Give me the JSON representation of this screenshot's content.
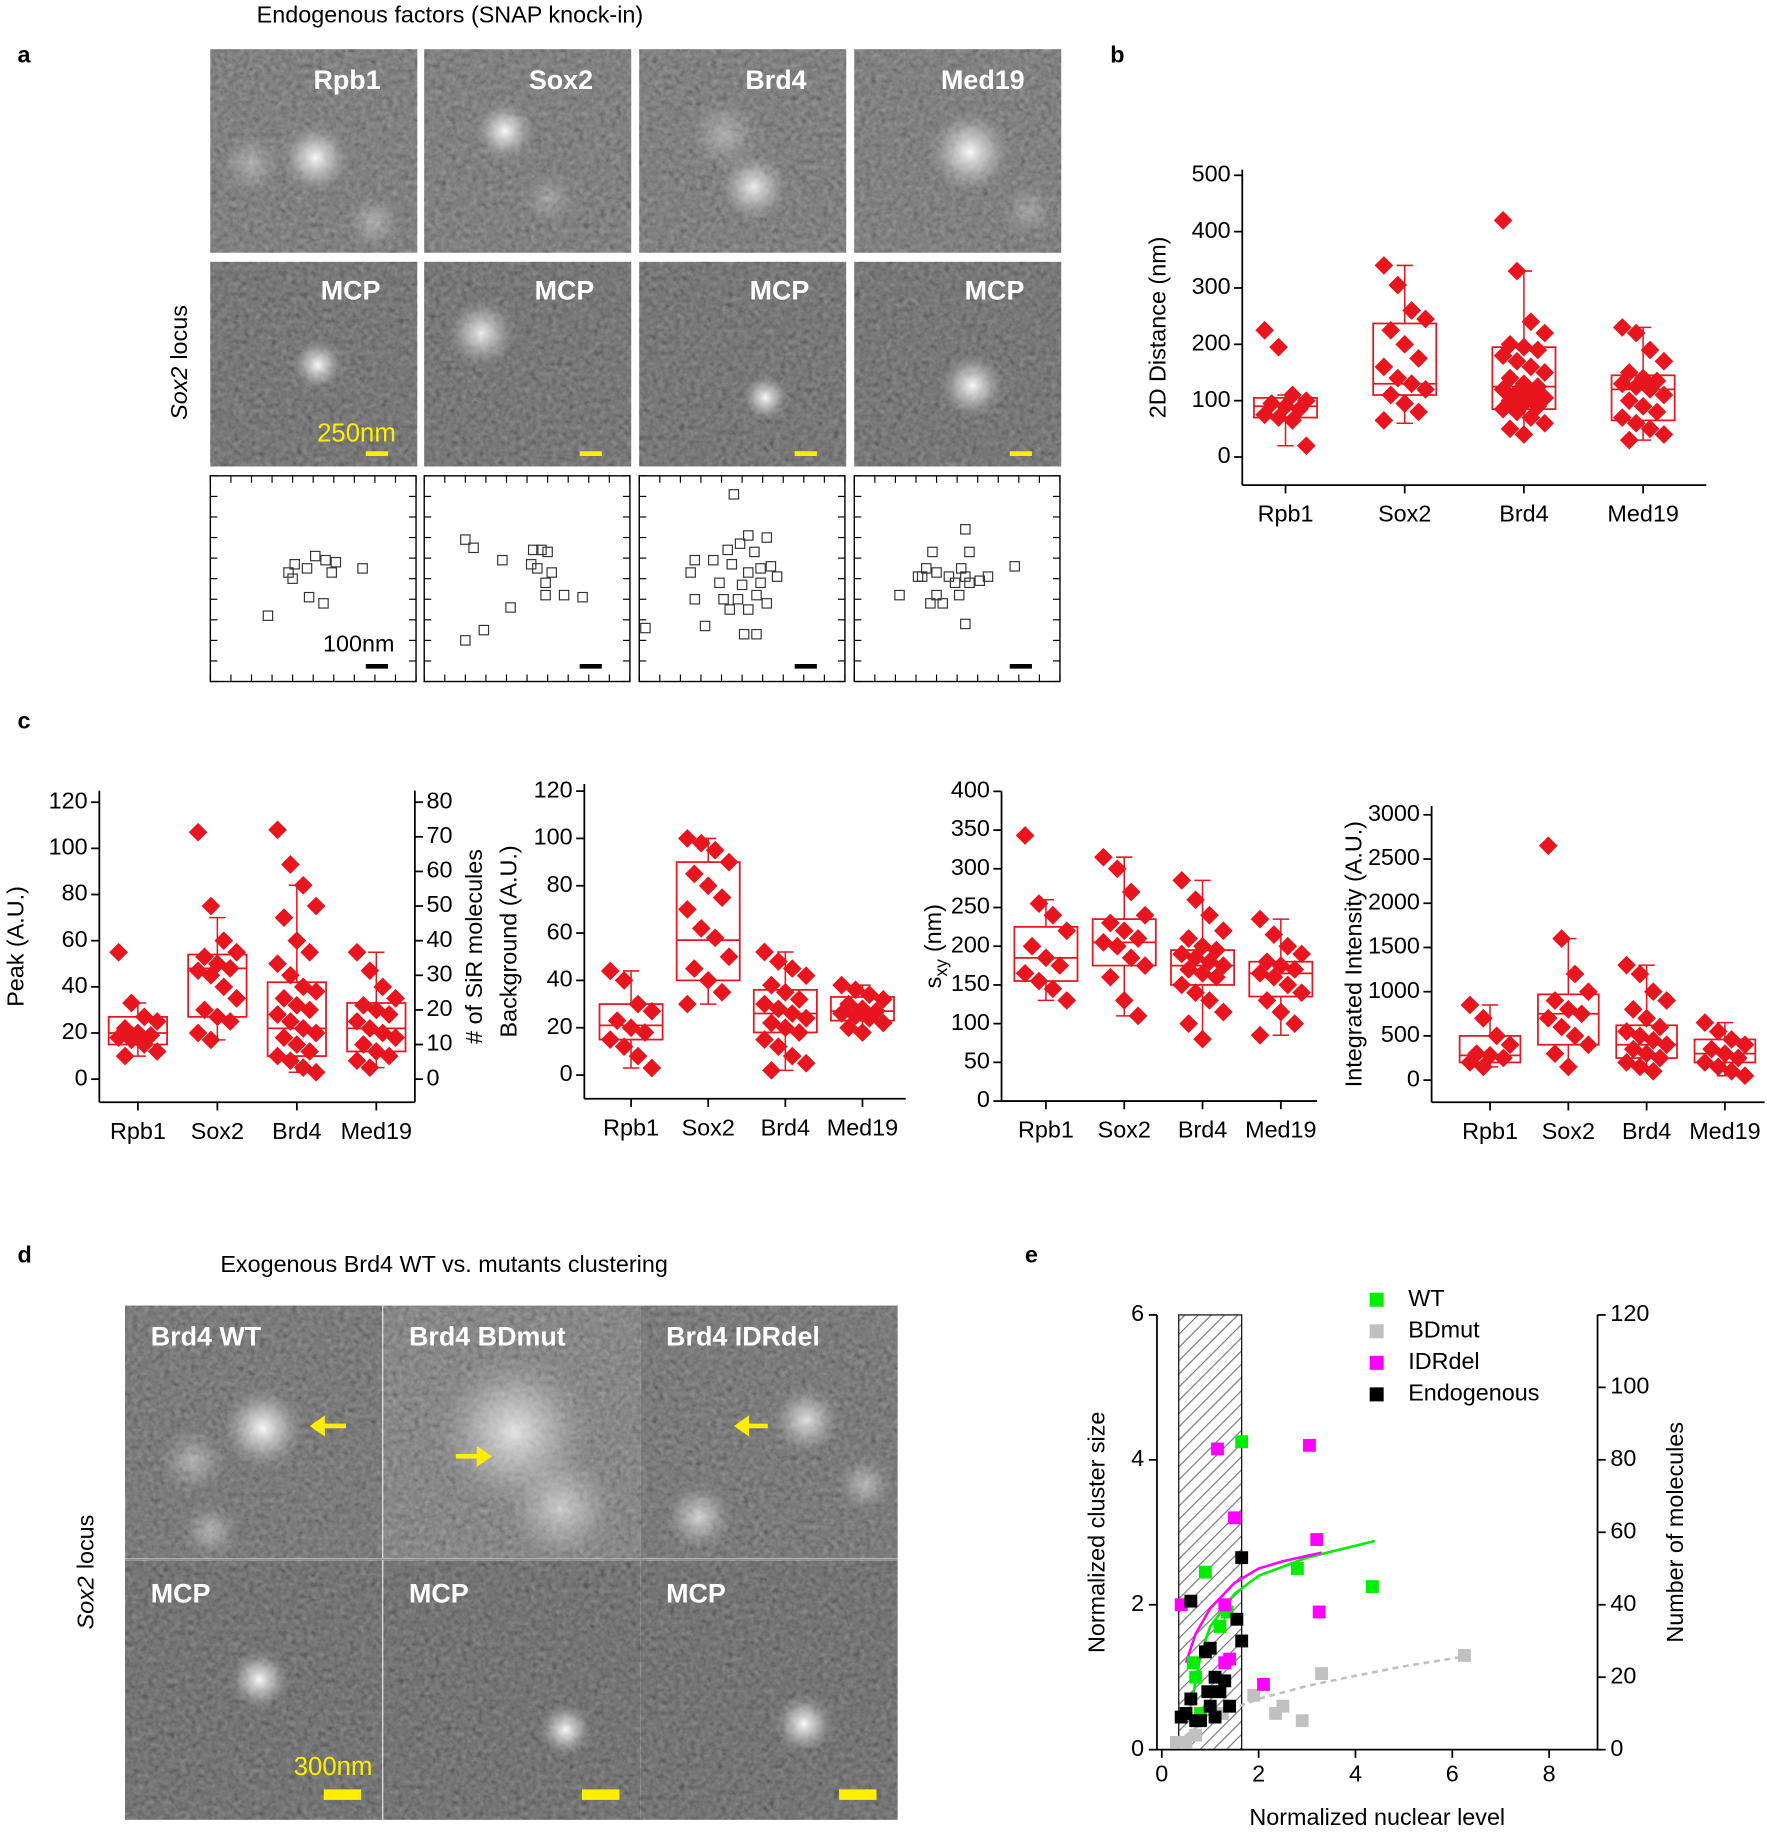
{
  "figure": {
    "title": "Endogenous factors (SNAP knock-in)",
    "panel_labels": [
      "a",
      "b",
      "c",
      "d",
      "e"
    ],
    "panel_a": {
      "factors": [
        "Rpb1",
        "Sox2",
        "Brd4",
        "Med19"
      ],
      "mcp_label": "MCP",
      "row_label": {
        "gene": "Sox2",
        "rest": "locus"
      },
      "scale_bar_image": "250nm",
      "scale_bar_localization": "100nm"
    },
    "panel_d": {
      "title": "Exogenous Brd4 WT vs. mutants clustering",
      "variants": [
        "Brd4 WT",
        "Brd4 BDmut",
        "Brd4 IDRdel"
      ],
      "mcp_label": "MCP",
      "row_label": {
        "gene": "Sox2",
        "rest": "locus"
      },
      "scale_bar": "300nm"
    }
  },
  "chart_data": [
    {
      "type": "localization",
      "xlim": [
        0,
        10
      ],
      "ylim": [
        0,
        10
      ],
      "xticks": [
        0,
        1,
        2,
        3,
        4,
        5,
        6,
        7,
        8,
        9,
        10
      ],
      "yticks": [
        0,
        1,
        2,
        3,
        4,
        5,
        6,
        7,
        8,
        9,
        10
      ],
      "x": [
        5.1,
        5.6,
        6.1,
        4.1,
        3.8,
        4.7,
        5.9,
        7.4,
        4.0,
        4.8,
        5.5,
        2.8
      ],
      "y": [
        6.1,
        5.9,
        5.8,
        5.7,
        5.3,
        5.5,
        5.3,
        5.5,
        5.0,
        4.1,
        3.8,
        3.2
      ]
    },
    {
      "type": "localization",
      "xlim": [
        0,
        10
      ],
      "ylim": [
        0,
        10
      ],
      "xticks": [
        0,
        1,
        2,
        3,
        4,
        5,
        6,
        7,
        8,
        9,
        10
      ],
      "yticks": [
        0,
        1,
        2,
        3,
        4,
        5,
        6,
        7,
        8,
        9,
        10
      ],
      "x": [
        2.0,
        2.4,
        3.8,
        5.3,
        5.7,
        6.0,
        5.2,
        5.5,
        6.2,
        5.9,
        5.9,
        6.8,
        7.7,
        4.2,
        2.9,
        2.0
      ],
      "y": [
        6.9,
        6.5,
        5.9,
        6.4,
        6.4,
        6.3,
        5.7,
        5.5,
        5.3,
        4.8,
        4.2,
        4.2,
        4.1,
        3.6,
        2.5,
        2.0
      ]
    },
    {
      "type": "localization",
      "xlim": [
        0,
        10
      ],
      "ylim": [
        0,
        10
      ],
      "xticks": [
        0,
        1,
        2,
        3,
        4,
        5,
        6,
        7,
        8,
        9,
        10
      ],
      "yticks": [
        0,
        1,
        2,
        3,
        4,
        5,
        6,
        7,
        8,
        9,
        10
      ],
      "x": [
        4.6,
        5.3,
        4.9,
        6.2,
        4.3,
        5.6,
        3.6,
        2.7,
        4.5,
        6.4,
        5.9,
        5.3,
        6.7,
        2.5,
        3.9,
        5.0,
        5.9,
        4.1,
        2.7,
        4.8,
        5.7,
        6.2,
        3.2,
        5.1,
        5.7,
        0.3,
        4.4,
        5.3
      ],
      "y": [
        9.1,
        7.1,
        6.7,
        7.0,
        6.4,
        6.3,
        5.9,
        5.9,
        5.7,
        5.6,
        5.5,
        5.3,
        5.1,
        5.3,
        4.8,
        4.7,
        4.8,
        4.0,
        4.0,
        4.0,
        4.2,
        3.8,
        2.7,
        2.3,
        2.3,
        2.6,
        3.5,
        3.5
      ]
    },
    {
      "type": "localization",
      "xlim": [
        0,
        10
      ],
      "ylim": [
        0,
        10
      ],
      "xticks": [
        0,
        1,
        2,
        3,
        4,
        5,
        6,
        7,
        8,
        9,
        10
      ],
      "yticks": [
        0,
        1,
        2,
        3,
        4,
        5,
        6,
        7,
        8,
        9,
        10
      ],
      "x": [
        5.4,
        3.8,
        5.6,
        3.5,
        4.0,
        5.2,
        3.3,
        4.6,
        5.4,
        6.5,
        7.8,
        4.9,
        5.6,
        6.1,
        2.2,
        4.0,
        5.1,
        3.7,
        4.3,
        5.4,
        3.1
      ],
      "y": [
        7.4,
        6.3,
        6.3,
        5.5,
        5.3,
        5.5,
        5.1,
        5.1,
        5.1,
        5.1,
        5.6,
        4.8,
        4.8,
        4.9,
        4.2,
        4.2,
        4.2,
        3.8,
        3.8,
        2.8,
        5.1
      ]
    },
    {
      "type": "box",
      "ylabel": "2D Distance (nm)",
      "categories": [
        "Rpb1",
        "Sox2",
        "Brd4",
        "Med19"
      ],
      "color": "#e8141e",
      "ylim": [
        -50,
        510
      ],
      "yticks": [
        0,
        100,
        200,
        300,
        400,
        500
      ],
      "boxes": [
        {
          "whisker_low": 20,
          "q1": 70,
          "median": 90,
          "q3": 105,
          "whisker_high": 110,
          "points": [
            225,
            195,
            110,
            100,
            95,
            90,
            85,
            75,
            70,
            65,
            20
          ]
        },
        {
          "whisker_low": 60,
          "q1": 110,
          "median": 130,
          "q3": 237,
          "whisker_high": 340,
          "points": [
            340,
            305,
            260,
            245,
            225,
            200,
            175,
            160,
            140,
            130,
            120,
            110,
            95,
            80,
            65
          ]
        },
        {
          "whisker_low": 40,
          "q1": 85,
          "median": 125,
          "q3": 195,
          "whisker_high": 330,
          "points": [
            420,
            330,
            240,
            220,
            200,
            195,
            190,
            180,
            170,
            160,
            150,
            140,
            130,
            125,
            120,
            115,
            110,
            105,
            100,
            95,
            90,
            85,
            80,
            70,
            60,
            50,
            40
          ]
        },
        {
          "whisker_low": 30,
          "q1": 65,
          "median": 120,
          "q3": 145,
          "whisker_high": 230,
          "points": [
            230,
            220,
            190,
            170,
            150,
            140,
            135,
            130,
            125,
            120,
            110,
            100,
            90,
            80,
            70,
            60,
            50,
            40,
            30
          ]
        }
      ]
    },
    {
      "type": "box",
      "ylabel": "Peak (A.U.)",
      "y2label": "# of SiR molecules",
      "categories": [
        "Rpb1",
        "Sox2",
        "Brd4",
        "Med19"
      ],
      "color": "#e8141e",
      "ylim": [
        -10,
        125
      ],
      "yticks": [
        0,
        20,
        40,
        60,
        80,
        100,
        120
      ],
      "y2lim": [
        -6.667,
        83.333
      ],
      "y2ticks": [
        0,
        10,
        20,
        30,
        40,
        50,
        60,
        70,
        80
      ],
      "boxes": [
        {
          "whisker_low": 10,
          "q1": 15,
          "median": 20,
          "q3": 27,
          "whisker_high": 33,
          "points": [
            55,
            33,
            27,
            25,
            22,
            20,
            19,
            18,
            17,
            15,
            12,
            10
          ]
        },
        {
          "whisker_low": 17,
          "q1": 27,
          "median": 48,
          "q3": 54,
          "whisker_high": 70,
          "points": [
            107,
            75,
            60,
            55,
            53,
            50,
            48,
            47,
            45,
            40,
            35,
            30,
            27,
            25,
            20,
            17
          ]
        },
        {
          "whisker_low": 3,
          "q1": 10,
          "median": 22,
          "q3": 42,
          "whisker_high": 84,
          "points": [
            108,
            93,
            84,
            75,
            70,
            60,
            55,
            50,
            45,
            40,
            38,
            35,
            32,
            30,
            28,
            25,
            22,
            20,
            18,
            15,
            12,
            10,
            8,
            5,
            3
          ]
        },
        {
          "whisker_low": 5,
          "q1": 12,
          "median": 22,
          "q3": 33,
          "whisker_high": 55,
          "points": [
            55,
            47,
            40,
            35,
            32,
            30,
            28,
            25,
            22,
            20,
            18,
            15,
            12,
            10,
            8,
            5
          ]
        }
      ]
    },
    {
      "type": "box",
      "ylabel": "Background (A.U.)",
      "categories": [
        "Rpb1",
        "Sox2",
        "Brd4",
        "Med19"
      ],
      "color": "#e8141e",
      "ylim": [
        -10,
        123
      ],
      "yticks": [
        0,
        20,
        40,
        60,
        80,
        100,
        120
      ],
      "boxes": [
        {
          "whisker_low": 3,
          "q1": 15,
          "median": 21,
          "q3": 30,
          "whisker_high": 44,
          "points": [
            44,
            40,
            30,
            27,
            23,
            20,
            18,
            15,
            12,
            8,
            3
          ]
        },
        {
          "whisker_low": 30,
          "q1": 40,
          "median": 57,
          "q3": 90,
          "whisker_high": 100,
          "points": [
            100,
            98,
            95,
            90,
            85,
            80,
            75,
            70,
            62,
            58,
            50,
            45,
            40,
            35,
            30
          ]
        },
        {
          "whisker_low": 2,
          "q1": 18,
          "median": 26,
          "q3": 36,
          "whisker_high": 52,
          "points": [
            52,
            48,
            45,
            42,
            38,
            35,
            32,
            30,
            28,
            26,
            24,
            22,
            20,
            18,
            15,
            12,
            8,
            5,
            2
          ]
        },
        {
          "whisker_low": 18,
          "q1": 23,
          "median": 27,
          "q3": 33,
          "whisker_high": 38,
          "points": [
            38,
            36,
            34,
            32,
            30,
            28,
            27,
            26,
            25,
            24,
            22,
            20,
            18
          ]
        }
      ]
    },
    {
      "type": "box",
      "ylabel": "s",
      "ylabel_sub": "xy",
      "ylabel_unit": "(nm)",
      "categories": [
        "Rpb1",
        "Sox2",
        "Brd4",
        "Med19"
      ],
      "color": "#e8141e",
      "ylim": [
        0,
        400
      ],
      "yticks": [
        0,
        50,
        100,
        150,
        200,
        250,
        300,
        350,
        400
      ],
      "boxes": [
        {
          "whisker_low": 130,
          "q1": 155,
          "median": 185,
          "q3": 225,
          "whisker_high": 260,
          "points": [
            343,
            255,
            240,
            220,
            200,
            185,
            175,
            165,
            155,
            145,
            130
          ]
        },
        {
          "whisker_low": 110,
          "q1": 175,
          "median": 205,
          "q3": 235,
          "whisker_high": 315,
          "points": [
            315,
            300,
            270,
            240,
            230,
            220,
            210,
            205,
            200,
            185,
            175,
            160,
            130,
            110
          ]
        },
        {
          "whisker_low": 80,
          "q1": 150,
          "median": 175,
          "q3": 195,
          "whisker_high": 285,
          "points": [
            285,
            260,
            240,
            220,
            210,
            200,
            195,
            190,
            185,
            180,
            175,
            170,
            165,
            160,
            150,
            140,
            130,
            115,
            100,
            80
          ]
        },
        {
          "whisker_low": 85,
          "q1": 135,
          "median": 165,
          "q3": 180,
          "whisker_high": 235,
          "points": [
            235,
            215,
            200,
            190,
            180,
            175,
            170,
            165,
            160,
            150,
            140,
            130,
            115,
            100,
            85
          ]
        }
      ]
    },
    {
      "type": "box",
      "ylabel": "Integrated Intensity (A.U.)",
      "categories": [
        "Rpb1",
        "Sox2",
        "Brd4",
        "Med19"
      ],
      "color": "#e8141e",
      "ylim": [
        -250,
        3100
      ],
      "yticks": [
        0,
        500,
        1000,
        1500,
        2000,
        2500,
        3000
      ],
      "boxes": [
        {
          "whisker_low": 150,
          "q1": 200,
          "median": 280,
          "q3": 500,
          "whisker_high": 850,
          "points": [
            850,
            700,
            500,
            400,
            300,
            280,
            250,
            200,
            150
          ]
        },
        {
          "whisker_low": 150,
          "q1": 400,
          "median": 750,
          "q3": 970,
          "whisker_high": 1600,
          "points": [
            2650,
            1600,
            1200,
            1000,
            900,
            800,
            750,
            700,
            600,
            500,
            400,
            300,
            150
          ]
        },
        {
          "whisker_low": 100,
          "q1": 250,
          "median": 400,
          "q3": 620,
          "whisker_high": 1300,
          "points": [
            1300,
            1200,
            1000,
            900,
            800,
            700,
            600,
            550,
            500,
            450,
            400,
            350,
            300,
            250,
            200,
            150,
            100
          ]
        },
        {
          "whisker_low": 50,
          "q1": 200,
          "median": 300,
          "q3": 460,
          "whisker_high": 650,
          "points": [
            650,
            550,
            460,
            400,
            350,
            300,
            250,
            200,
            150,
            100,
            50
          ]
        }
      ]
    },
    {
      "type": "scatter",
      "xlabel": "Normalized nuclear level",
      "ylabel": "Normalized cluster size",
      "y2label": "Number of molecules",
      "xlim": [
        -0.1,
        9
      ],
      "xticks": [
        0,
        2,
        4,
        6,
        8
      ],
      "ylim": [
        0,
        6
      ],
      "yticks": [
        0,
        2,
        4,
        6
      ],
      "y2lim": [
        0,
        120
      ],
      "y2ticks": [
        0,
        20,
        40,
        60,
        80,
        100,
        120
      ],
      "legend": "upper right",
      "shaded_xrange": [
        0.35,
        1.65
      ],
      "series": [
        {
          "name": "WT",
          "color": "#00ee00",
          "x": [
            0.9,
            1.65,
            2.8,
            4.35,
            0.65,
            0.7,
            1.2,
            0.8,
            1.35
          ],
          "y": [
            2.45,
            4.25,
            2.5,
            2.25,
            1.2,
            1.0,
            1.7,
            0.5,
            1.9
          ]
        },
        {
          "name": "BDmut",
          "color": "#c0c0c0",
          "x": [
            6.25,
            3.3,
            2.5,
            2.35,
            1.9,
            2.9,
            0.5,
            0.7,
            1.25,
            0.3
          ],
          "y": [
            1.3,
            1.05,
            0.6,
            0.5,
            0.75,
            0.4,
            0.1,
            0.2,
            0.5,
            0.1
          ]
        },
        {
          "name": "IDRdel",
          "color": "#ff00ff",
          "x": [
            0.4,
            1.15,
            3.05,
            1.5,
            3.2,
            3.25,
            1.3,
            1.3,
            2.1,
            1.4
          ],
          "y": [
            2.0,
            4.15,
            4.2,
            3.2,
            2.9,
            1.9,
            2.0,
            1.2,
            0.9,
            1.25
          ]
        },
        {
          "name": "Endogenous",
          "color": "#000000",
          "x": [
            0.6,
            1.65,
            1.55,
            1.65,
            0.9,
            1.0,
            1.1,
            0.95,
            1.3,
            0.6,
            0.4,
            0.7,
            1.2,
            1.4,
            0.8,
            1.1,
            0.5,
            1.0
          ],
          "y": [
            2.05,
            2.65,
            1.8,
            1.5,
            1.35,
            1.4,
            1.0,
            0.8,
            0.95,
            0.7,
            0.45,
            0.4,
            0.8,
            0.6,
            0.4,
            0.45,
            0.5,
            0.6
          ]
        }
      ],
      "fits": [
        {
          "color": "#00ee00",
          "dashed": false,
          "x": [
            0.6,
            0.8,
            1,
            1.5,
            2,
            3,
            4.4
          ],
          "y": [
            0.6,
            1.3,
            1.7,
            2.15,
            2.4,
            2.65,
            2.88
          ]
        },
        {
          "color": "#ff00ff",
          "dashed": false,
          "x": [
            0.5,
            0.7,
            1,
            1.5,
            2,
            2.5,
            3.3
          ],
          "y": [
            1.2,
            1.6,
            1.95,
            2.3,
            2.5,
            2.6,
            2.72
          ]
        },
        {
          "color": "#c0c0c0",
          "dashed": true,
          "x": [
            0.3,
            1,
            2,
            3,
            4,
            5,
            6.2
          ],
          "y": [
            0.1,
            0.45,
            0.7,
            0.88,
            1.02,
            1.15,
            1.28
          ]
        }
      ]
    }
  ]
}
